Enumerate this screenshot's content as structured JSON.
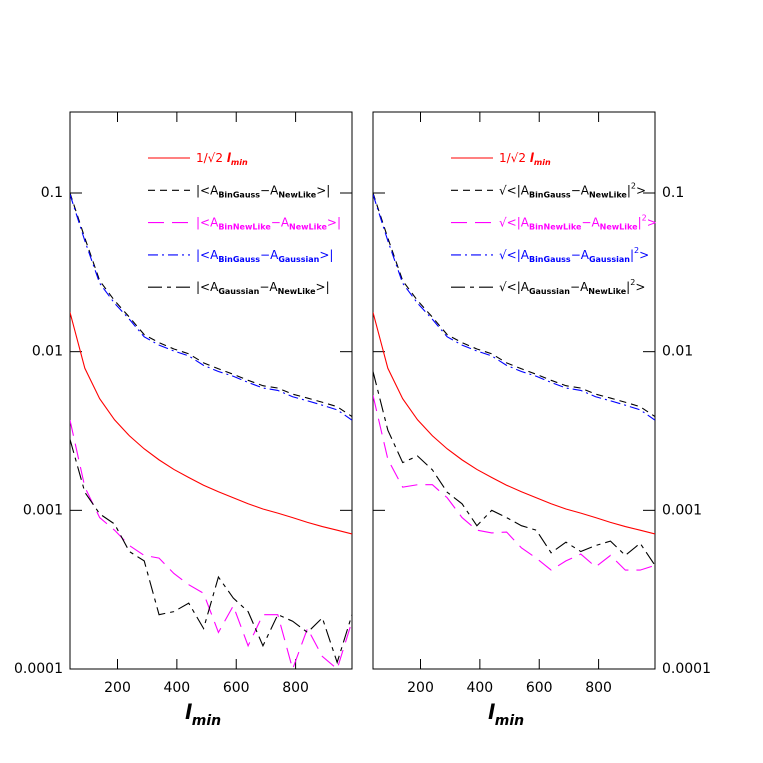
{
  "chart_data": [
    {
      "type": "line",
      "x_label": "lmin",
      "log_y": true,
      "xlim": [
        40,
        990
      ],
      "ylim": [
        0.0001,
        0.324
      ],
      "xticks": [
        200,
        400,
        600,
        800
      ],
      "yticks": [
        0.0001,
        0.001,
        0.01,
        0.1
      ],
      "ytick_side": "left",
      "x": [
        40,
        90,
        140,
        190,
        240,
        290,
        340,
        390,
        440,
        490,
        540,
        590,
        640,
        690,
        740,
        790,
        840,
        890,
        940,
        990
      ],
      "series": [
        {
          "name": "1/√2 lmin",
          "color": "#ff0000",
          "dash": "solid",
          "values": [
            0.01768,
            0.00786,
            0.00505,
            0.00372,
            0.00295,
            0.00244,
            0.00208,
            0.00181,
            0.00161,
            0.00144,
            0.00131,
            0.0012,
            0.0011,
            0.00102,
            0.00096,
            0.0009,
            0.00084,
            0.00079,
            0.00075,
            0.00071
          ]
        },
        {
          "name": "|<ABinGauss−ANewLike>|",
          "color": "#000000",
          "dash": "dashed",
          "values": [
            0.1,
            0.052,
            0.028,
            0.021,
            0.0165,
            0.0128,
            0.0114,
            0.0104,
            0.0097,
            0.0085,
            0.0078,
            0.0072,
            0.0066,
            0.0061,
            0.0059,
            0.0054,
            0.0051,
            0.0048,
            0.0045,
            0.0039
          ]
        },
        {
          "name": "|<ABinNewLike−ANewLike>|",
          "color": "#ff00ff",
          "dash": "longdash",
          "values": [
            0.0037,
            0.0014,
            0.0009,
            0.00075,
            0.0006,
            0.00052,
            0.0005,
            0.0004,
            0.00034,
            0.0003,
            0.00017,
            0.00025,
            0.00014,
            0.00022,
            0.00022,
            0.0001,
            0.00018,
            0.00012,
            0.0001,
            0.0002
          ]
        },
        {
          "name": "|<ABinGauss−AGaussian>|",
          "color": "#0000ff",
          "dash": "dashdot",
          "values": [
            0.098,
            0.05,
            0.027,
            0.0202,
            0.016,
            0.0124,
            0.011,
            0.0101,
            0.0094,
            0.0082,
            0.0075,
            0.007,
            0.0064,
            0.0059,
            0.0057,
            0.0052,
            0.0049,
            0.0046,
            0.0043,
            0.0037
          ]
        },
        {
          "name": "|<AGaussian−ANewLike>|",
          "color": "#000000",
          "dash": "longshort",
          "values": [
            0.0028,
            0.0013,
            0.00095,
            0.00082,
            0.00055,
            0.00048,
            0.00022,
            0.00023,
            0.00026,
            0.00018,
            0.00038,
            0.00028,
            0.00023,
            0.00014,
            0.00022,
            0.0002,
            0.00017,
            0.00021,
            0.00011,
            0.00022
          ]
        }
      ]
    },
    {
      "type": "line",
      "x_label": "lmin",
      "log_y": true,
      "xlim": [
        40,
        990
      ],
      "ylim": [
        0.0001,
        0.324
      ],
      "xticks": [
        200,
        400,
        600,
        800
      ],
      "yticks": [
        0.0001,
        0.001,
        0.01,
        0.1
      ],
      "ytick_side": "right",
      "x": [
        40,
        90,
        140,
        190,
        240,
        290,
        340,
        390,
        440,
        490,
        540,
        590,
        640,
        690,
        740,
        790,
        840,
        890,
        940,
        990
      ],
      "series": [
        {
          "name": "1/√2 lmin",
          "color": "#ff0000",
          "dash": "solid",
          "values": [
            0.01768,
            0.00786,
            0.00505,
            0.00372,
            0.00295,
            0.00244,
            0.00208,
            0.00181,
            0.00161,
            0.00144,
            0.00131,
            0.0012,
            0.0011,
            0.00102,
            0.00096,
            0.0009,
            0.00084,
            0.00079,
            0.00075,
            0.00071
          ]
        },
        {
          "name": "√<|ABinGauss−ANewLike|2>",
          "color": "#000000",
          "dash": "dashed",
          "values": [
            0.1,
            0.052,
            0.028,
            0.021,
            0.0165,
            0.0128,
            0.0114,
            0.0104,
            0.0097,
            0.0085,
            0.0078,
            0.0072,
            0.0066,
            0.0061,
            0.0059,
            0.0054,
            0.0051,
            0.0048,
            0.0045,
            0.0039
          ]
        },
        {
          "name": "√<|ABinNewLike−ANewLike|2>",
          "color": "#ff00ff",
          "dash": "longdash",
          "values": [
            0.0053,
            0.0021,
            0.0014,
            0.00145,
            0.00145,
            0.0012,
            0.0009,
            0.00075,
            0.00072,
            0.00073,
            0.00058,
            0.0005,
            0.00042,
            0.00048,
            0.00053,
            0.00044,
            0.00052,
            0.00042,
            0.00042,
            0.00045
          ]
        },
        {
          "name": "√<|ABinGauss−AGaussian|2>",
          "color": "#0000ff",
          "dash": "dashdot",
          "values": [
            0.098,
            0.05,
            0.027,
            0.0202,
            0.016,
            0.0124,
            0.011,
            0.0101,
            0.0094,
            0.0082,
            0.0075,
            0.007,
            0.0064,
            0.0059,
            0.0057,
            0.0052,
            0.0049,
            0.0046,
            0.0043,
            0.0037
          ]
        },
        {
          "name": "√<|AGaussian−ANewLike|2>",
          "color": "#000000",
          "dash": "longshort",
          "values": [
            0.0075,
            0.0032,
            0.002,
            0.0022,
            0.0018,
            0.0013,
            0.0011,
            0.0008,
            0.001,
            0.0009,
            0.0008,
            0.00075,
            0.00054,
            0.00063,
            0.00055,
            0.0006,
            0.00064,
            0.00052,
            0.00062,
            0.00045
          ]
        }
      ]
    }
  ]
}
